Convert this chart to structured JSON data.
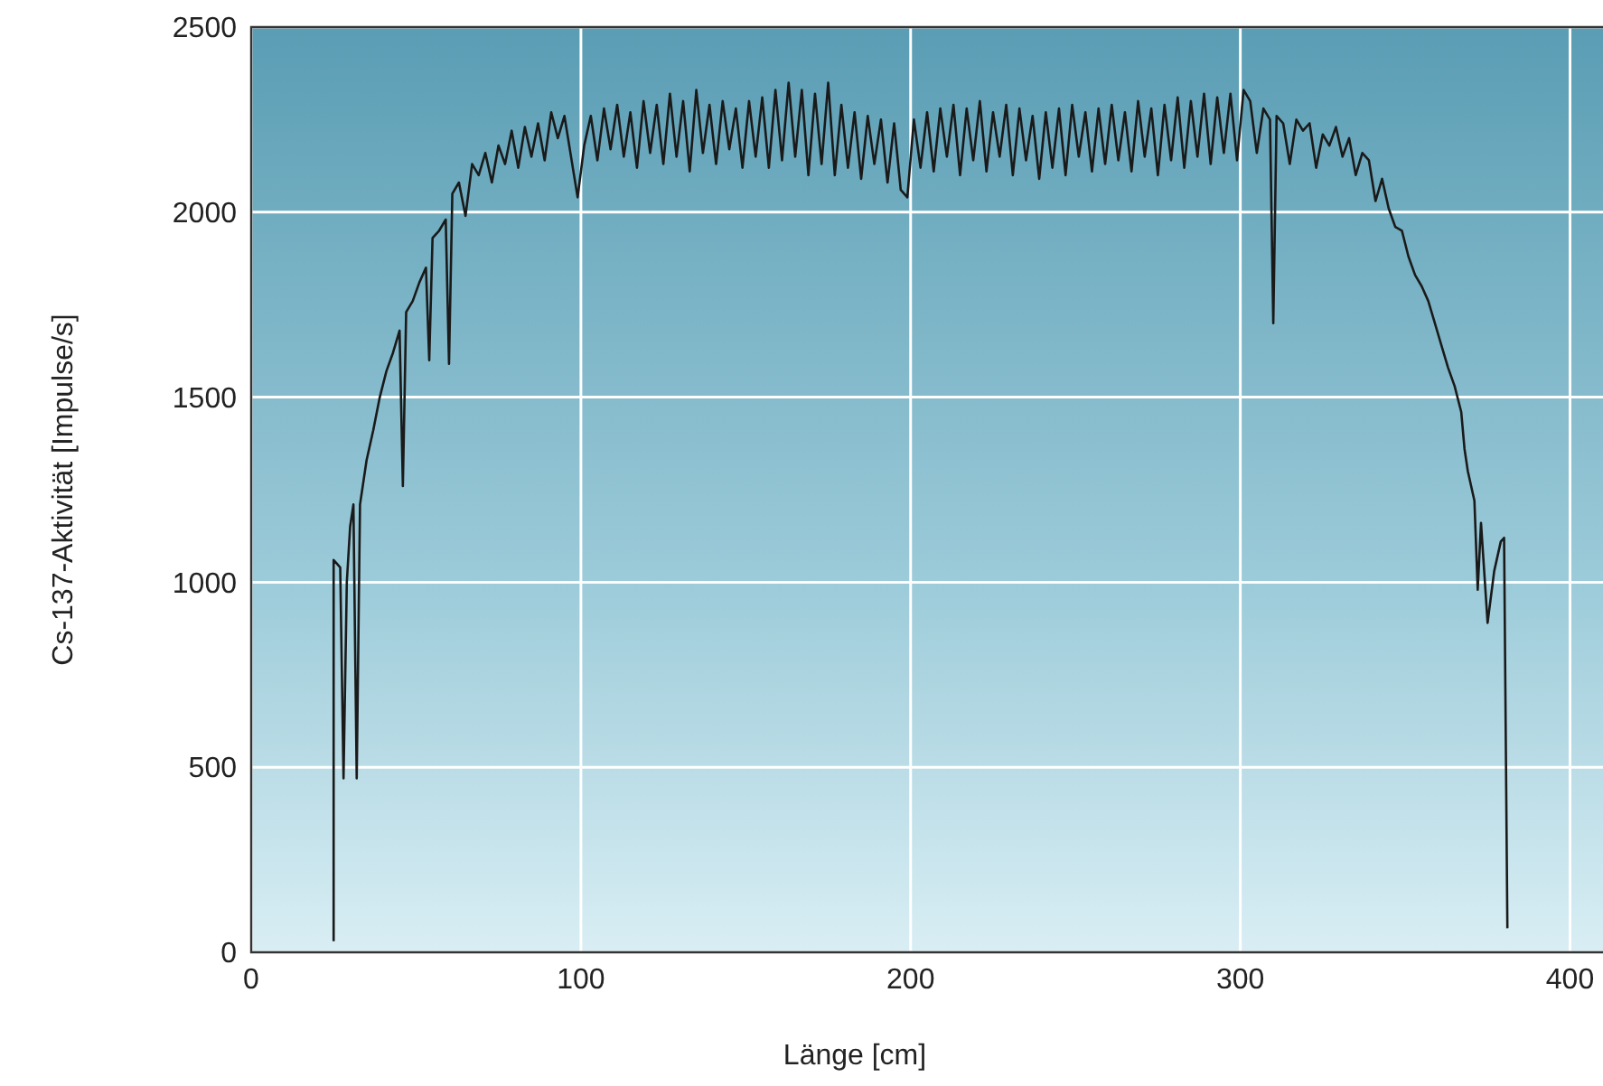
{
  "chart_data": {
    "type": "line",
    "xlabel": "Länge [cm]",
    "ylabel": "Cs-137-Aktivität [Impulse/s]",
    "xlim": [
      0,
      410
    ],
    "xticks": [
      0,
      100,
      200,
      300,
      400
    ],
    "ylim": [
      0,
      2500
    ],
    "yticks": [
      0,
      500,
      1000,
      1500,
      2000,
      2500
    ],
    "grid": true,
    "marker": "none",
    "line_style": "solid",
    "series": [
      {
        "color": "#1a1a1a",
        "x": [
          25,
          25,
          26,
          27,
          28,
          29,
          30,
          31,
          32,
          33,
          35,
          37,
          39,
          41,
          43,
          45,
          46,
          47,
          49,
          51,
          53,
          54,
          55,
          57,
          59,
          60,
          61,
          63,
          65,
          67,
          69,
          71,
          73,
          75,
          77,
          79,
          81,
          83,
          85,
          87,
          89,
          91,
          93,
          95,
          97,
          99,
          101,
          103,
          105,
          107,
          109,
          111,
          113,
          115,
          117,
          119,
          121,
          123,
          125,
          127,
          129,
          131,
          133,
          135,
          137,
          139,
          141,
          143,
          145,
          147,
          149,
          151,
          153,
          155,
          157,
          159,
          161,
          163,
          165,
          167,
          169,
          171,
          173,
          175,
          177,
          179,
          181,
          183,
          185,
          187,
          189,
          191,
          193,
          195,
          197,
          199,
          201,
          203,
          205,
          207,
          209,
          211,
          213,
          215,
          217,
          219,
          221,
          223,
          225,
          227,
          229,
          231,
          233,
          235,
          237,
          239,
          241,
          243,
          245,
          247,
          249,
          251,
          253,
          255,
          257,
          259,
          261,
          263,
          265,
          267,
          269,
          271,
          273,
          275,
          277,
          279,
          281,
          283,
          285,
          287,
          289,
          291,
          293,
          295,
          297,
          299,
          301,
          303,
          305,
          307,
          309,
          310,
          311,
          313,
          315,
          317,
          319,
          321,
          323,
          325,
          327,
          329,
          331,
          333,
          335,
          337,
          339,
          341,
          343,
          345,
          347,
          349,
          351,
          353,
          355,
          357,
          359,
          361,
          363,
          365,
          367,
          368,
          369,
          371,
          372,
          373,
          375,
          377,
          379,
          380,
          381
        ],
        "values": [
          30,
          1060,
          1050,
          1040,
          470,
          1000,
          1150,
          1210,
          470,
          1210,
          1330,
          1410,
          1500,
          1570,
          1620,
          1680,
          1260,
          1730,
          1760,
          1810,
          1850,
          1600,
          1930,
          1950,
          1980,
          1590,
          2050,
          2080,
          1990,
          2130,
          2100,
          2160,
          2080,
          2180,
          2130,
          2220,
          2120,
          2230,
          2150,
          2240,
          2140,
          2270,
          2200,
          2260,
          2150,
          2040,
          2180,
          2260,
          2140,
          2280,
          2170,
          2290,
          2150,
          2270,
          2120,
          2300,
          2160,
          2290,
          2130,
          2320,
          2150,
          2300,
          2110,
          2330,
          2160,
          2290,
          2130,
          2300,
          2170,
          2280,
          2120,
          2300,
          2150,
          2310,
          2120,
          2330,
          2140,
          2350,
          2150,
          2330,
          2100,
          2320,
          2130,
          2350,
          2100,
          2290,
          2120,
          2270,
          2090,
          2260,
          2130,
          2250,
          2080,
          2240,
          2060,
          2040,
          2250,
          2120,
          2270,
          2110,
          2280,
          2150,
          2290,
          2100,
          2280,
          2140,
          2300,
          2110,
          2270,
          2150,
          2290,
          2100,
          2280,
          2140,
          2260,
          2090,
          2270,
          2120,
          2280,
          2100,
          2290,
          2150,
          2270,
          2110,
          2280,
          2130,
          2290,
          2140,
          2270,
          2110,
          2300,
          2150,
          2280,
          2100,
          2290,
          2140,
          2310,
          2120,
          2300,
          2150,
          2320,
          2130,
          2310,
          2160,
          2320,
          2140,
          2330,
          2300,
          2160,
          2280,
          2250,
          1700,
          2260,
          2240,
          2130,
          2250,
          2220,
          2240,
          2120,
          2210,
          2180,
          2230,
          2150,
          2200,
          2100,
          2160,
          2140,
          2030,
          2090,
          2010,
          1960,
          1950,
          1880,
          1830,
          1800,
          1760,
          1700,
          1640,
          1580,
          1530,
          1460,
          1360,
          1300,
          1220,
          980,
          1160,
          890,
          1030,
          1110,
          1120,
          65
        ]
      }
    ]
  }
}
